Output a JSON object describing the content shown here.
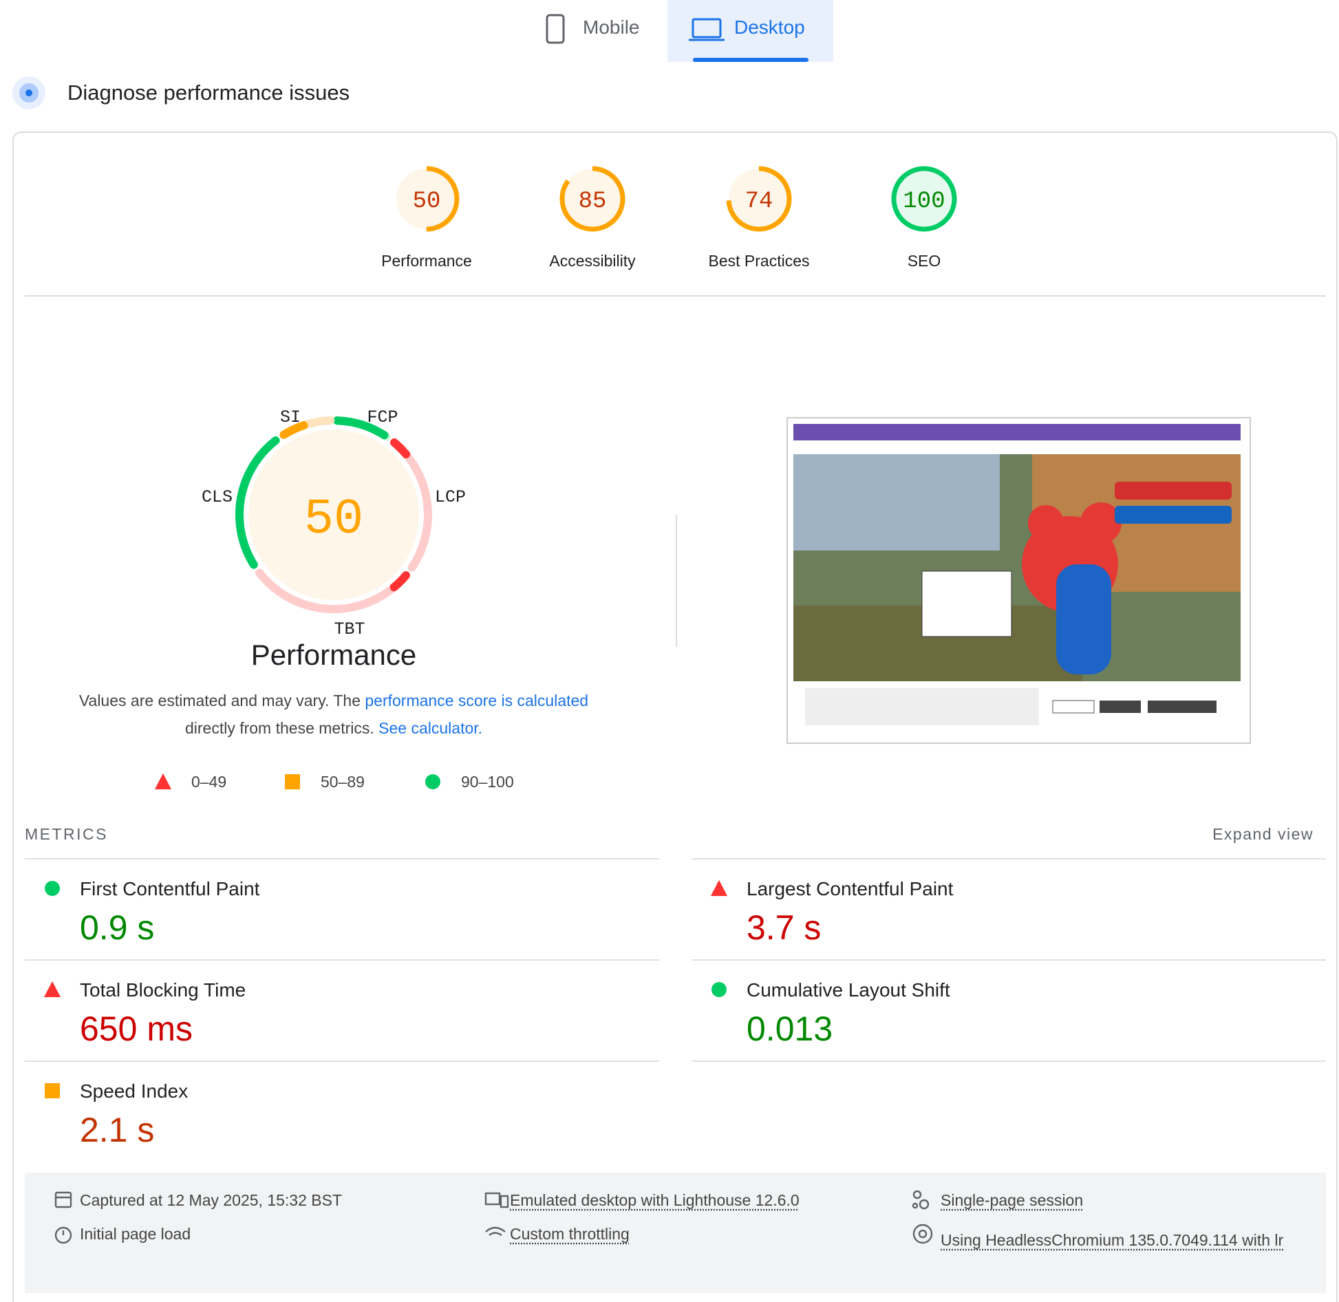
{
  "tabs": [
    "Mobile",
    "Desktop"
  ],
  "section_title": "Diagnose performance issues",
  "scores": [
    {
      "value": 50,
      "label": "Performance"
    },
    {
      "value": 85,
      "label": "Accessibility"
    },
    {
      "value": 74,
      "label": "Best Practices"
    },
    {
      "value": 100,
      "label": "SEO"
    }
  ],
  "gauge_labels": [
    "SI",
    "FCP",
    "LCP",
    "TBT",
    "CLS"
  ],
  "note": {
    "before": "Values are estimated and may vary. The ",
    "link1": "performance score is calculated",
    "middle": " directly from these metrics. ",
    "link2": "See calculator."
  },
  "legend": [
    {
      "label": "0–49",
      "icon": "triangle",
      "color": "#ff3333"
    },
    {
      "label": "50–89",
      "icon": "square",
      "color": "#ffa400"
    },
    {
      "label": "90–100",
      "icon": "circle",
      "color": "#00cc66"
    }
  ],
  "metrics_heading": "METRICS",
  "expand": "Expand view",
  "metrics": [
    {
      "name": "First Contentful Paint",
      "value": "0.9 s",
      "icon": "circle",
      "color": "#008800"
    },
    {
      "name": "Largest Contentful Paint",
      "value": "3.7 s",
      "icon": "triangle",
      "color": "#cc0000"
    },
    {
      "name": "Total Blocking Time",
      "value": "650 ms",
      "icon": "triangle",
      "color": "#cc0000"
    },
    {
      "name": "Cumulative Layout Shift",
      "value": "0.013",
      "icon": "circle",
      "color": "#008800"
    },
    {
      "name": "Speed Index",
      "value": "2.1 s",
      "icon": "square",
      "color": "#c33300"
    }
  ],
  "footer": [
    "Captured at 12 May 2025, 15:32 BST",
    "Initial page load",
    "Emulated desktop with Lighthouse 12.6.0",
    "Custom throttling",
    "Single-page session",
    "Using HeadlessChromium 135.0.7049.114 with lr"
  ]
}
